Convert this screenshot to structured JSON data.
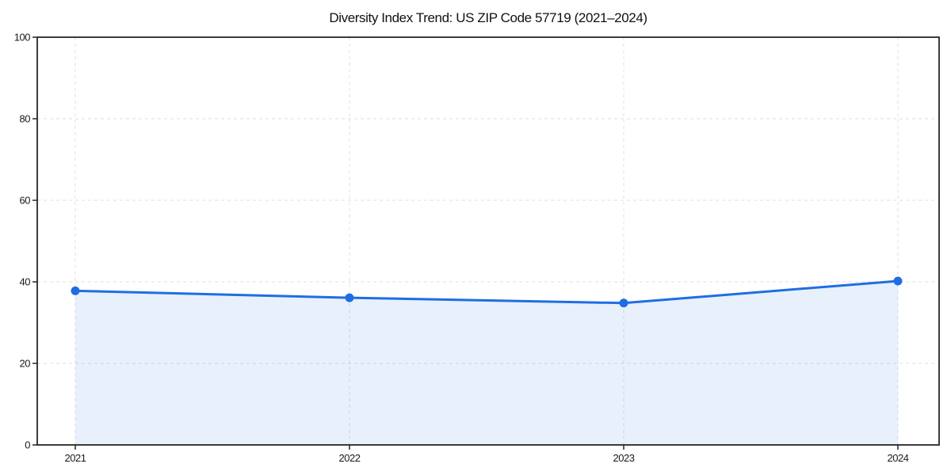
{
  "chart_data": {
    "type": "area",
    "title": "Diversity Index Trend: US ZIP Code 57719 (2021–2024)",
    "x": [
      "2021",
      "2022",
      "2023",
      "2024"
    ],
    "series": [
      {
        "name": "Diversity Index",
        "values": [
          37.8,
          36.1,
          34.8,
          40.2
        ]
      }
    ],
    "xlabel": "",
    "ylabel": "",
    "ylim": [
      0,
      100
    ],
    "yticks": [
      0,
      20,
      40,
      60,
      80,
      100
    ],
    "grid": true,
    "grid_style": "dashed",
    "legend": "none",
    "marker": "circle",
    "colors": {
      "line": "#1e6ee3",
      "marker": "#1e6ee3",
      "fill": "rgba(30, 110, 227, 0.10)",
      "grid": "#e5e5e5",
      "spine": "#262626",
      "text": "#1a1a1a",
      "background": "#ffffff"
    }
  }
}
